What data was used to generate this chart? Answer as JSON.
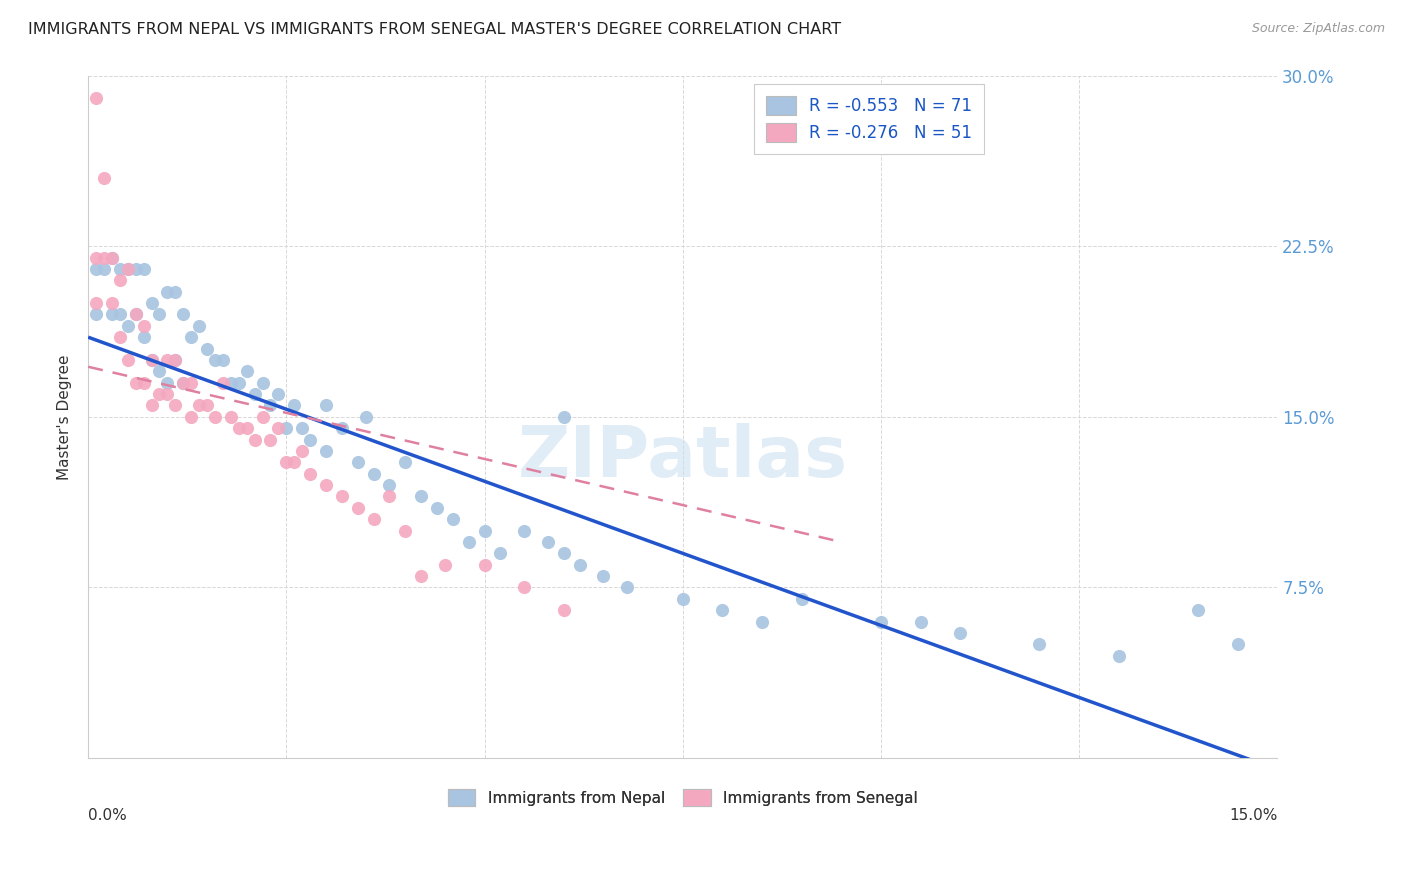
{
  "title": "IMMIGRANTS FROM NEPAL VS IMMIGRANTS FROM SENEGAL MASTER'S DEGREE CORRELATION CHART",
  "source": "Source: ZipAtlas.com",
  "ylabel": "Master's Degree",
  "x_min": 0.0,
  "x_max": 0.15,
  "y_min": 0.0,
  "y_max": 0.3,
  "nepal_R": -0.553,
  "nepal_N": 71,
  "senegal_R": -0.276,
  "senegal_N": 51,
  "nepal_color": "#a8c4e0",
  "senegal_color": "#f4a8c0",
  "nepal_line_color": "#2255cc",
  "senegal_line_color": "#e080a0",
  "watermark": "ZIPatlas",
  "legend_nepal_label": "R = -0.553   N = 71",
  "legend_senegal_label": "R = -0.276   N = 51",
  "nepal_line_x0": 0.0,
  "nepal_line_y0": 0.185,
  "nepal_line_x1": 0.15,
  "nepal_line_y1": -0.005,
  "senegal_line_x0": 0.0,
  "senegal_line_y0": 0.172,
  "senegal_line_x1": 0.095,
  "senegal_line_y1": 0.095,
  "nepal_x": [
    0.001,
    0.001,
    0.002,
    0.003,
    0.003,
    0.004,
    0.004,
    0.005,
    0.005,
    0.006,
    0.006,
    0.007,
    0.007,
    0.008,
    0.008,
    0.009,
    0.009,
    0.01,
    0.01,
    0.011,
    0.011,
    0.012,
    0.012,
    0.013,
    0.014,
    0.015,
    0.016,
    0.017,
    0.018,
    0.019,
    0.02,
    0.021,
    0.022,
    0.023,
    0.024,
    0.025,
    0.026,
    0.027,
    0.028,
    0.03,
    0.03,
    0.032,
    0.034,
    0.035,
    0.036,
    0.038,
    0.04,
    0.042,
    0.044,
    0.046,
    0.048,
    0.05,
    0.052,
    0.055,
    0.058,
    0.06,
    0.062,
    0.065,
    0.068,
    0.075,
    0.08,
    0.085,
    0.09,
    0.1,
    0.105,
    0.11,
    0.12,
    0.13,
    0.14,
    0.145,
    0.06
  ],
  "nepal_y": [
    0.215,
    0.195,
    0.215,
    0.22,
    0.195,
    0.215,
    0.195,
    0.215,
    0.19,
    0.215,
    0.195,
    0.215,
    0.185,
    0.2,
    0.175,
    0.195,
    0.17,
    0.205,
    0.165,
    0.205,
    0.175,
    0.195,
    0.165,
    0.185,
    0.19,
    0.18,
    0.175,
    0.175,
    0.165,
    0.165,
    0.17,
    0.16,
    0.165,
    0.155,
    0.16,
    0.145,
    0.155,
    0.145,
    0.14,
    0.155,
    0.135,
    0.145,
    0.13,
    0.15,
    0.125,
    0.12,
    0.13,
    0.115,
    0.11,
    0.105,
    0.095,
    0.1,
    0.09,
    0.1,
    0.095,
    0.09,
    0.085,
    0.08,
    0.075,
    0.07,
    0.065,
    0.06,
    0.07,
    0.06,
    0.06,
    0.055,
    0.05,
    0.045,
    0.065,
    0.05,
    0.15
  ],
  "senegal_x": [
    0.001,
    0.001,
    0.001,
    0.002,
    0.002,
    0.003,
    0.003,
    0.004,
    0.004,
    0.005,
    0.005,
    0.006,
    0.006,
    0.007,
    0.007,
    0.008,
    0.008,
    0.009,
    0.01,
    0.01,
    0.011,
    0.011,
    0.012,
    0.013,
    0.013,
    0.014,
    0.015,
    0.016,
    0.017,
    0.018,
    0.019,
    0.02,
    0.021,
    0.022,
    0.023,
    0.024,
    0.025,
    0.026,
    0.027,
    0.028,
    0.03,
    0.032,
    0.034,
    0.036,
    0.038,
    0.04,
    0.042,
    0.045,
    0.05,
    0.055,
    0.06
  ],
  "senegal_y": [
    0.29,
    0.22,
    0.2,
    0.255,
    0.22,
    0.22,
    0.2,
    0.21,
    0.185,
    0.215,
    0.175,
    0.195,
    0.165,
    0.19,
    0.165,
    0.175,
    0.155,
    0.16,
    0.175,
    0.16,
    0.175,
    0.155,
    0.165,
    0.165,
    0.15,
    0.155,
    0.155,
    0.15,
    0.165,
    0.15,
    0.145,
    0.145,
    0.14,
    0.15,
    0.14,
    0.145,
    0.13,
    0.13,
    0.135,
    0.125,
    0.12,
    0.115,
    0.11,
    0.105,
    0.115,
    0.1,
    0.08,
    0.085,
    0.085,
    0.075,
    0.065
  ],
  "background_color": "#ffffff",
  "grid_color": "#d8d8d8"
}
